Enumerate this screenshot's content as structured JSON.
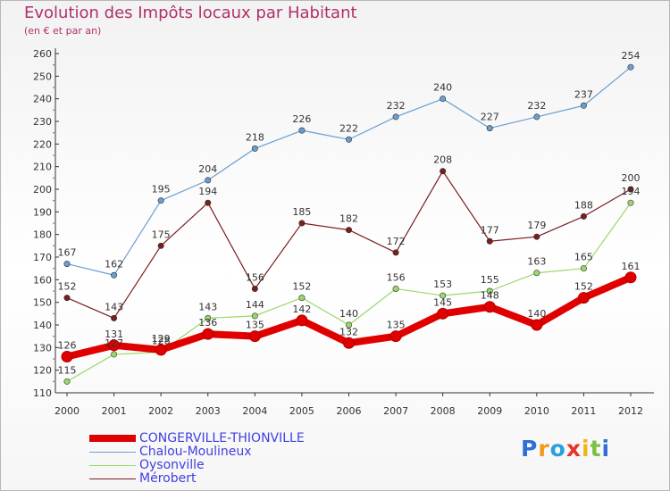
{
  "header": {
    "title": "Evolution des Impôts locaux par Habitant",
    "subtitle": "(en € et par an)"
  },
  "colors": {
    "text_accent": "#b0306a",
    "congerville": "#e00000",
    "chalou": "#6a9ed0",
    "oysonville": "#9ad86a",
    "merobert": "#7a1e1e"
  },
  "legend": {
    "items": [
      {
        "label": "CONGERVILLE-THIONVILLE",
        "color": "#e00000"
      },
      {
        "label": "Chalou-Moulineux",
        "color": "#6a9ed0"
      },
      {
        "label": "Oysonville",
        "color": "#9ad86a"
      },
      {
        "label": "Mérobert",
        "color": "#7a1e1e"
      }
    ]
  },
  "logo": {
    "letters": [
      {
        "ch": "P",
        "color": "#2f6fd6"
      },
      {
        "ch": "r",
        "color": "#f19a1c"
      },
      {
        "ch": "o",
        "color": "#28a0e0"
      },
      {
        "ch": "x",
        "color": "#e8322a"
      },
      {
        "ch": "i",
        "color": "#f2b418"
      },
      {
        "ch": "t",
        "color": "#7ac142"
      },
      {
        "ch": "i",
        "color": "#2f6fd6"
      }
    ]
  },
  "chart_data": {
    "type": "line",
    "title": "Evolution des Impôts locaux par Habitant",
    "subtitle": "(en € et par an)",
    "xlabel": "",
    "ylabel": "",
    "ylim": [
      110,
      260
    ],
    "yticks": [
      110,
      120,
      130,
      140,
      150,
      160,
      170,
      180,
      190,
      200,
      210,
      220,
      230,
      240,
      250,
      260
    ],
    "grid": false,
    "legend_position": "bottom-left",
    "x": [
      "2000",
      "2001",
      "2002",
      "2003",
      "2004",
      "2005",
      "2006",
      "2007",
      "2008",
      "2009",
      "2010",
      "2011",
      "2012"
    ],
    "series": [
      {
        "name": "Chalou-Moulineux",
        "color": "#6a9ed0",
        "values": [
          167,
          162,
          195,
          204,
          218,
          226,
          222,
          232,
          240,
          227,
          232,
          237,
          254
        ],
        "labels": [
          "167",
          "162",
          "195",
          "204",
          "218",
          "226",
          "222",
          "232",
          "240",
          "227",
          "232",
          "237",
          "254"
        ]
      },
      {
        "name": "Mérobert",
        "color": "#7a1e1e",
        "values": [
          152,
          143,
          175,
          194,
          156,
          185,
          182,
          172,
          208,
          177,
          179,
          188,
          200
        ],
        "labels": [
          "152",
          "143",
          "175",
          "194",
          "156",
          "185",
          "182",
          "172",
          "208",
          "177",
          "179",
          "188",
          "200"
        ]
      },
      {
        "name": "Oysonville",
        "color": "#9ad86a",
        "values": [
          115,
          127,
          128,
          143,
          144,
          152,
          140,
          156,
          153,
          155,
          163,
          165,
          194
        ],
        "labels": [
          "115",
          "127",
          "128",
          "143",
          "144",
          "152",
          "140",
          "156",
          "153",
          "155",
          "163",
          "165",
          "194"
        ]
      },
      {
        "name": "CONGERVILLE-THIONVILLE",
        "color": "#e00000",
        "values": [
          126,
          131,
          129,
          136,
          135,
          142,
          132,
          135,
          145,
          148,
          140,
          152,
          161
        ],
        "labels": [
          "126",
          "131",
          "129",
          "136",
          "135",
          "142",
          "132",
          "135",
          "145",
          "148",
          "140",
          "152",
          "161"
        ]
      }
    ]
  }
}
